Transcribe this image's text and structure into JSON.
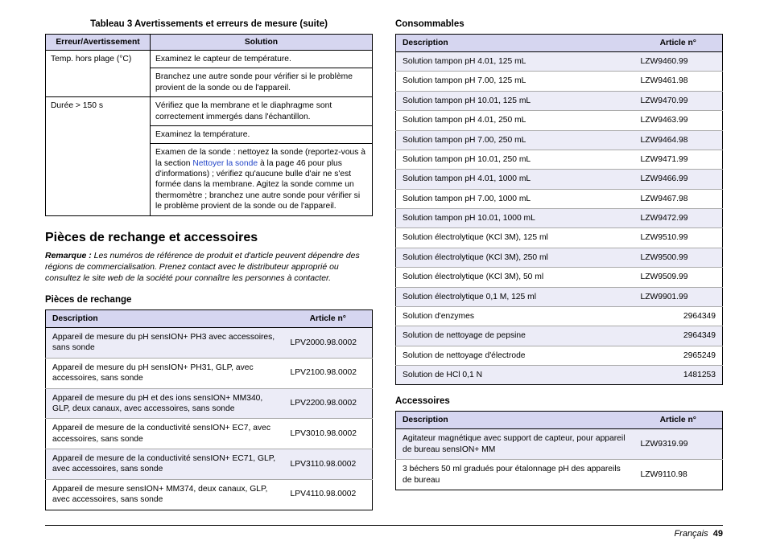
{
  "leftCol": {
    "table3": {
      "caption": "Tableau 3  Avertissements et erreurs de mesure (suite)",
      "headers": [
        "Erreur/Avertissement",
        "Solution"
      ],
      "group1": {
        "label": "Temp. hors plage (°C)",
        "r1": "Examinez le capteur de température.",
        "r2": "Branchez une autre sonde pour vérifier si le problème provient de la sonde ou de l'appareil."
      },
      "group2": {
        "label": "Durée > 150 s",
        "r1": "Vérifiez que la membrane et le diaphragme sont correctement immergés dans l'échantillon.",
        "r2": "Examinez la température.",
        "r3a": "Examen de la sonde : nettoyez la sonde (reportez-vous à la section ",
        "r3link": "Nettoyer la sonde",
        "r3b": " à la page 46 pour plus d'informations) ; vérifiez qu'aucune bulle d'air ne s'est formée dans la membrane. Agitez la sonde comme un thermomètre ; branchez une autre sonde pour vérifier si le problème provient de la sonde ou de l'appareil."
      }
    },
    "h2": "Pièces de rechange et accessoires",
    "noteLabel": "Remarque :",
    "noteBody": " Les numéros de référence de produit et d'article peuvent dépendre des régions de commercialisation. Prenez contact avec le distributeur approprié ou consultez le site web de la société pour connaître les personnes à contacter.",
    "partsHeading": "Pièces de rechange",
    "partsHeaders": [
      "Description",
      "Article n°"
    ],
    "parts": [
      {
        "d": "Appareil de mesure du pH sensION+ PH3 avec accessoires, sans sonde",
        "a": "LPV2000.98.0002"
      },
      {
        "d": "Appareil de mesure du pH sensION+ PH31, GLP, avec accessoires, sans sonde",
        "a": "LPV2100.98.0002"
      },
      {
        "d": "Appareil de mesure du pH et des ions sensION+ MM340, GLP, deux canaux, avec accessoires, sans sonde",
        "a": "LPV2200.98.0002"
      },
      {
        "d": "Appareil de mesure de la conductivité sensION+ EC7, avec accessoires, sans sonde",
        "a": "LPV3010.98.0002"
      },
      {
        "d": "Appareil de mesure de la conductivité sensION+ EC71, GLP, avec accessoires, sans sonde",
        "a": "LPV3110.98.0002"
      },
      {
        "d": "Appareil de mesure sensION+ MM374, deux canaux, GLP, avec accessoires, sans sonde",
        "a": "LPV4110.98.0002"
      }
    ]
  },
  "rightCol": {
    "consHeading": "Consommables",
    "consHeaders": [
      "Description",
      "Article n°"
    ],
    "cons": [
      {
        "d": "Solution tampon pH 4.01, 125 mL",
        "a": "LZW9460.99"
      },
      {
        "d": "Solution tampon pH 7.00, 125 mL",
        "a": "LZW9461.98"
      },
      {
        "d": "Solution tampon pH 10.01, 125 mL",
        "a": "LZW9470.99"
      },
      {
        "d": "Solution tampon pH 4.01, 250 mL",
        "a": "LZW9463.99"
      },
      {
        "d": "Solution tampon pH 7.00, 250 mL",
        "a": "LZW9464.98"
      },
      {
        "d": "Solution tampon pH 10.01, 250 mL",
        "a": "LZW9471.99"
      },
      {
        "d": "Solution tampon pH 4.01, 1000 mL",
        "a": "LZW9466.99"
      },
      {
        "d": "Solution tampon pH 7.00, 1000 mL",
        "a": "LZW9467.98"
      },
      {
        "d": "Solution tampon pH 10.01, 1000 mL",
        "a": "LZW9472.99"
      },
      {
        "d": "Solution électrolytique (KCl 3M), 125 ml",
        "a": "LZW9510.99"
      },
      {
        "d": "Solution électrolytique (KCl 3M), 250 ml",
        "a": "LZW9500.99"
      },
      {
        "d": "Solution électrolytique (KCl 3M), 50 ml",
        "a": "LZW9509.99"
      },
      {
        "d": "Solution électrolytique 0,1 M, 125 ml",
        "a": "LZW9901.99"
      },
      {
        "d": "Solution d'enzymes",
        "a": "2964349"
      },
      {
        "d": "Solution de nettoyage de pepsine",
        "a": "2964349"
      },
      {
        "d": "Solution de nettoyage d'électrode",
        "a": "2965249"
      },
      {
        "d": "Solution de HCl 0,1 N",
        "a": "1481253"
      }
    ],
    "accHeading": "Accessoires",
    "accHeaders": [
      "Description",
      "Article n°"
    ],
    "acc": [
      {
        "d": "Agitateur magnétique avec support de capteur, pour appareil de bureau sensION+ MM",
        "a": "LZW9319.99"
      },
      {
        "d": "3 béchers 50 ml gradués pour étalonnage pH des appareils de bureau",
        "a": "LZW9110.98"
      }
    ]
  },
  "footer": {
    "lang": "Français",
    "page": "49"
  }
}
